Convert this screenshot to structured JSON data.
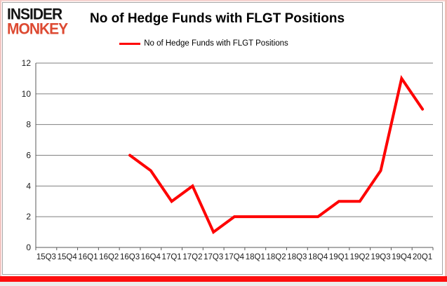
{
  "brand": {
    "line1": "INSIDER",
    "line2": "MONKEY",
    "line2_color": "#dd4a32"
  },
  "header": {
    "title": "No of Hedge Funds with FLGT Positions"
  },
  "legend": {
    "label": "No of Hedge Funds with FLGT Positions",
    "line_color": "#fe0000"
  },
  "chart_data": {
    "type": "line",
    "title": "No of Hedge Funds with FLGT Positions",
    "categories": [
      "15Q3",
      "15Q4",
      "16Q1",
      "16Q2",
      "16Q3",
      "16Q4",
      "17Q1",
      "17Q2",
      "17Q3",
      "17Q4",
      "18Q1",
      "18Q2",
      "18Q3",
      "18Q4",
      "19Q1",
      "19Q2",
      "19Q3",
      "19Q4",
      "20Q1"
    ],
    "series": [
      {
        "name": "No of Hedge Funds with FLGT Positions",
        "color": "#fe0000",
        "values": [
          null,
          null,
          null,
          null,
          6,
          5,
          3,
          4,
          1,
          2,
          2,
          2,
          2,
          2,
          3,
          3,
          5,
          11,
          9
        ]
      }
    ],
    "xlabel": "",
    "ylabel": "",
    "ylim": [
      0,
      12
    ],
    "yticks": [
      0,
      2,
      4,
      6,
      8,
      10,
      12
    ],
    "grid": true,
    "legend_position": "top",
    "gridline_color": "#7f7f7f",
    "axis_color": "#595959",
    "tick_label_color": "#1a1a1a"
  }
}
